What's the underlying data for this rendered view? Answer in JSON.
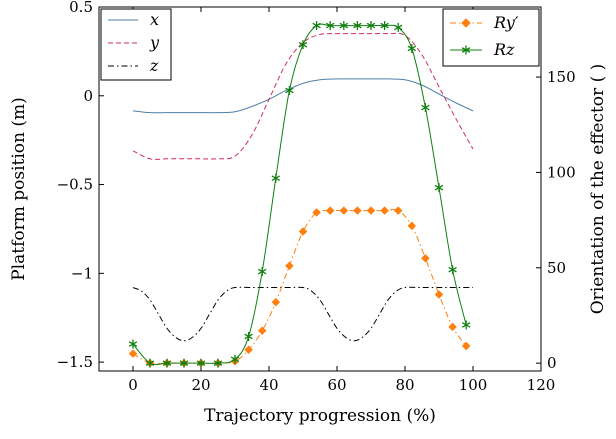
{
  "chart_data": {
    "type": "line",
    "xlabel": "Trajectory progression (%)",
    "ylabel_left": "Platform position (m)",
    "ylabel_right": "Orientation of the effector ( )",
    "xlim": [
      -10,
      120
    ],
    "ylim_left": [
      -1.55,
      0.5
    ],
    "ylim_right": [
      -4.12,
      186.74
    ],
    "xticks": [
      0,
      20,
      40,
      60,
      80,
      100,
      120
    ],
    "yticks_left": [
      -1.5,
      -1,
      -0.5,
      0,
      0.5
    ],
    "yticks_left_labels": [
      "−1.5",
      "−1",
      "−0.5",
      "0",
      "0.5"
    ],
    "yticks_right": [
      0,
      50,
      100,
      150
    ],
    "yticks_right_labels": [
      "0",
      "50",
      "100",
      "150"
    ],
    "legend_left": [
      {
        "label": "x",
        "color": "#4f7fa8",
        "dash": "solid"
      },
      {
        "label": "y",
        "color": "#cc2e66",
        "dash": "dashed"
      },
      {
        "label": "z",
        "color": "#000000",
        "dash": "dashdot"
      }
    ],
    "legend_right": [
      {
        "label": "Ry′",
        "color": "#ff7f0e",
        "dash": "dashdot",
        "marker": "diamond"
      },
      {
        "label": "Rz",
        "color": "#108010",
        "dash": "solid",
        "marker": "star"
      }
    ],
    "series_left": [
      {
        "name": "x",
        "color": "#4f7fa8",
        "dash": "solid",
        "x": [
          0,
          5,
          10,
          15,
          20,
          25,
          30,
          35,
          40,
          45,
          50,
          55,
          60,
          65,
          70,
          75,
          80,
          85,
          90,
          95,
          100
        ],
        "y": [
          -0.085,
          -0.095,
          -0.095,
          -0.095,
          -0.095,
          -0.095,
          -0.09,
          -0.06,
          -0.02,
          0.03,
          0.07,
          0.09,
          0.095,
          0.095,
          0.095,
          0.095,
          0.09,
          0.06,
          0.01,
          -0.04,
          -0.085
        ]
      },
      {
        "name": "y",
        "color": "#cc2e66",
        "dash": "dashed",
        "x": [
          0,
          5,
          10,
          15,
          20,
          25,
          30,
          35,
          40,
          45,
          50,
          55,
          60,
          65,
          70,
          75,
          80,
          85,
          90,
          95,
          100
        ],
        "y": [
          -0.31,
          -0.355,
          -0.355,
          -0.355,
          -0.355,
          -0.355,
          -0.34,
          -0.22,
          -0.02,
          0.18,
          0.3,
          0.345,
          0.35,
          0.35,
          0.35,
          0.35,
          0.34,
          0.23,
          0.05,
          -0.13,
          -0.3
        ]
      },
      {
        "name": "z",
        "color": "#000000",
        "dash": "dashdot",
        "x": [
          0,
          2.5,
          5,
          7.5,
          10,
          12.5,
          15,
          17.5,
          20,
          22.5,
          25,
          27.5,
          30,
          35,
          40,
          45,
          50,
          52.5,
          55,
          57.5,
          60,
          62.5,
          65,
          67.5,
          70,
          72.5,
          75,
          77.5,
          80,
          85,
          90,
          95,
          100
        ],
        "y": [
          -1.08,
          -1.1,
          -1.15,
          -1.23,
          -1.31,
          -1.36,
          -1.38,
          -1.36,
          -1.31,
          -1.23,
          -1.15,
          -1.1,
          -1.08,
          -1.08,
          -1.08,
          -1.08,
          -1.08,
          -1.1,
          -1.15,
          -1.23,
          -1.31,
          -1.36,
          -1.38,
          -1.36,
          -1.31,
          -1.23,
          -1.15,
          -1.1,
          -1.08,
          -1.08,
          -1.08,
          -1.08,
          -1.08
        ]
      }
    ],
    "series_right": [
      {
        "name": "Ry′",
        "color": "#ff7f0e",
        "dash": "dashdot",
        "marker": "diamond",
        "x": [
          0,
          5,
          10,
          15,
          20,
          25,
          30,
          34,
          38,
          42,
          46,
          50,
          54,
          58,
          62,
          66,
          70,
          74,
          78,
          82,
          86,
          90,
          94,
          98
        ],
        "y": [
          5,
          0,
          0,
          0,
          0,
          0,
          1,
          7,
          17,
          32,
          51,
          69,
          79,
          80,
          80,
          80,
          80,
          80,
          80,
          72,
          55,
          36,
          19,
          9
        ]
      },
      {
        "name": "Rz",
        "color": "#108010",
        "dash": "solid",
        "marker": "star",
        "x": [
          0,
          5,
          10,
          15,
          20,
          25,
          30,
          34,
          38,
          42,
          46,
          50,
          54,
          58,
          62,
          66,
          70,
          74,
          78,
          82,
          86,
          90,
          94,
          98
        ],
        "y": [
          10,
          0,
          0,
          0,
          0,
          0,
          2,
          14,
          48,
          97,
          143,
          167,
          177,
          177,
          177,
          177,
          177,
          177,
          176,
          165,
          134,
          92,
          49,
          20
        ]
      }
    ]
  }
}
